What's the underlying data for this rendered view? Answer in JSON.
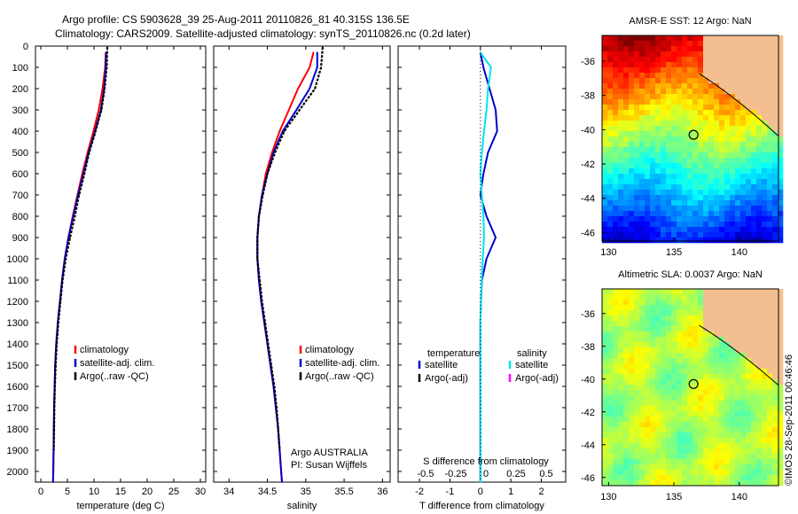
{
  "header": {
    "line1": "Argo profile: CS 5903628_39 25-Aug-2011 20110826_81 40.315S 136.5E",
    "line2": "Climatology: CARS2009. Satellite-adjusted climatology: synTS_20110826.nc (0.2d later)"
  },
  "colors": {
    "climatology": "#ff0000",
    "satellite": "#0000cc",
    "argo": "#000000",
    "sal_satellite": "#00e5ee",
    "sal_argo": "#ff00ff",
    "land": "#f4bf90"
  },
  "chart_data": [
    {
      "type": "line",
      "xlabel": "temperature (deg C)",
      "ylabel": "",
      "xlim": [
        -1,
        31
      ],
      "ylim": [
        2050,
        0
      ],
      "xticks": [
        0,
        5,
        10,
        15,
        20,
        25,
        30
      ],
      "yticks": [
        0,
        100,
        200,
        300,
        400,
        500,
        600,
        700,
        800,
        900,
        1000,
        1100,
        1200,
        1300,
        1400,
        1500,
        1600,
        1700,
        1800,
        1900,
        2000
      ],
      "legend": [
        "climatology",
        "satellite-adj. clim.",
        "Argo(..raw -QC)"
      ],
      "series": [
        {
          "name": "climatology",
          "color": "#ff0000",
          "x": [
            12.2,
            12.1,
            11.6,
            10.9,
            9.9,
            8.8,
            7.8,
            6.9,
            6.0,
            5.2,
            4.5,
            4.0,
            3.6,
            3.2,
            2.9,
            2.7,
            2.6,
            2.5,
            2.45,
            2.4,
            2.35,
            2.3
          ],
          "y": [
            30,
            100,
            200,
            300,
            400,
            500,
            600,
            700,
            800,
            900,
            1000,
            1100,
            1200,
            1300,
            1400,
            1500,
            1600,
            1700,
            1800,
            1900,
            2000,
            2050
          ]
        },
        {
          "name": "satellite-adj. clim.",
          "color": "#0000cc",
          "x": [
            12.3,
            12.2,
            11.9,
            11.3,
            10.2,
            9.0,
            8.0,
            7.0,
            6.1,
            5.2,
            4.5,
            4.0,
            3.6,
            3.2,
            2.9,
            2.7,
            2.6,
            2.5,
            2.45,
            2.4,
            2.35,
            2.3
          ],
          "y": [
            30,
            100,
            200,
            300,
            400,
            500,
            600,
            700,
            800,
            900,
            1000,
            1100,
            1200,
            1300,
            1400,
            1500,
            1600,
            1700,
            1800,
            1900,
            2000,
            2050
          ]
        },
        {
          "name": "Argo(..raw -QC)",
          "color": "#000000",
          "x": [
            12.5,
            12.4,
            12.0,
            11.4,
            10.3,
            9.1,
            8.2,
            7.2,
            6.4,
            5.5,
            4.7,
            4.1,
            3.7,
            3.3,
            3.0,
            2.8,
            2.65,
            2.55,
            2.5,
            2.45
          ],
          "y": [
            5,
            100,
            200,
            300,
            400,
            500,
            600,
            700,
            800,
            900,
            1000,
            1100,
            1200,
            1300,
            1400,
            1500,
            1600,
            1700,
            1800,
            1900
          ]
        }
      ]
    },
    {
      "type": "line",
      "xlabel": "salinity",
      "xlim": [
        33.8,
        36.1
      ],
      "ylim": [
        2050,
        0
      ],
      "xticks": [
        34,
        34.5,
        35,
        35.5,
        36
      ],
      "legend": [
        "climatology",
        "satellite-adj. clim.",
        "Argo(..raw -QC)"
      ],
      "series": [
        {
          "name": "climatology",
          "color": "#ff0000",
          "x": [
            35.1,
            35.05,
            34.9,
            34.78,
            34.66,
            34.56,
            34.48,
            34.43,
            34.39,
            34.37,
            34.37,
            34.39,
            34.42,
            34.46,
            34.5,
            34.54,
            34.58,
            34.61,
            34.64,
            34.66,
            34.68,
            34.69
          ],
          "y": [
            30,
            100,
            200,
            300,
            400,
            500,
            600,
            700,
            800,
            900,
            1000,
            1100,
            1200,
            1300,
            1400,
            1500,
            1600,
            1700,
            1800,
            1900,
            2000,
            2050
          ]
        },
        {
          "name": "satellite-adj. clim.",
          "color": "#0000cc",
          "x": [
            35.15,
            35.15,
            35.05,
            34.88,
            34.7,
            34.58,
            34.5,
            34.43,
            34.39,
            34.37,
            34.37,
            34.39,
            34.42,
            34.46,
            34.5,
            34.54,
            34.58,
            34.61,
            34.64,
            34.66,
            34.68,
            34.69
          ],
          "y": [
            30,
            100,
            200,
            300,
            400,
            500,
            600,
            700,
            800,
            900,
            1000,
            1100,
            1200,
            1300,
            1400,
            1500,
            1600,
            1700,
            1800,
            1900,
            2000,
            2050
          ]
        },
        {
          "name": "Argo(..raw -QC)",
          "color": "#000000",
          "x": [
            35.22,
            35.2,
            35.12,
            34.92,
            34.72,
            34.6,
            34.5,
            34.44,
            34.39,
            34.37,
            34.37,
            34.4,
            34.43,
            34.47,
            34.51,
            34.55,
            34.59,
            34.62,
            34.64,
            34.66
          ],
          "y": [
            5,
            100,
            200,
            300,
            400,
            500,
            600,
            700,
            800,
            900,
            1000,
            1100,
            1200,
            1300,
            1400,
            1500,
            1600,
            1700,
            1800,
            1900
          ]
        }
      ],
      "annotation": [
        "Argo AUSTRALIA",
        "PI: Susan Wijffels"
      ]
    },
    {
      "type": "line",
      "xlabel": "T difference from climatology",
      "top_xlabel": "S difference from climatology",
      "xlim": [
        -2.7,
        2.8
      ],
      "ylim": [
        2050,
        0
      ],
      "xticks": [
        -2,
        -1,
        0,
        1,
        2
      ],
      "top_xticks": [
        "-0.5",
        "-0.25",
        "0",
        "0.25",
        "0.5"
      ],
      "legend_titles": [
        "temperature",
        "salinity"
      ],
      "legend": [
        "satellite",
        "Argo(-adj)",
        "satellite",
        "Argo(-adj)"
      ],
      "series": [
        {
          "name": "satellite",
          "color": "#0000cc",
          "x": [
            0.0,
            0.1,
            0.3,
            0.5,
            0.55,
            0.25,
            0.1,
            0.0,
            0.2,
            0.5,
            0.2,
            0.05,
            0.02,
            0.0,
            0.0,
            0.0,
            0.0,
            0.0,
            0.0,
            0.0,
            0.0
          ],
          "y": [
            30,
            100,
            200,
            300,
            400,
            500,
            600,
            700,
            800,
            900,
            1000,
            1100,
            1200,
            1300,
            1400,
            1500,
            1600,
            1700,
            1800,
            1900,
            2050
          ]
        },
        {
          "name": "satellite",
          "color": "#00e5ee",
          "x": [
            0.0,
            0.35,
            0.25,
            0.2,
            0.12,
            0.05,
            0.0,
            0.05,
            0.1,
            0.12,
            0.08,
            0.04,
            0.02,
            0.0,
            0.0,
            0.0,
            0.0,
            0.0,
            0.0,
            0.0,
            0.0
          ],
          "y": [
            30,
            100,
            200,
            300,
            400,
            500,
            600,
            700,
            800,
            900,
            1000,
            1100,
            1200,
            1300,
            1400,
            1500,
            1600,
            1700,
            1800,
            1900,
            2050
          ]
        }
      ]
    },
    {
      "type": "heatmap",
      "title": "AMSR-E SST: 12 Argo: NaN",
      "xticks": [
        130,
        135,
        140
      ],
      "yticks": [
        -36,
        -38,
        -40,
        -42,
        -44,
        -46
      ],
      "xlim": [
        129.5,
        143
      ],
      "ylim": [
        -46.5,
        -34.5
      ],
      "marker": {
        "lon": 136.5,
        "lat": -40.3
      }
    },
    {
      "type": "heatmap",
      "title": "Altimetric SLA: 0.0037 Argo: NaN",
      "xticks": [
        130,
        135,
        140
      ],
      "yticks": [
        -36,
        -38,
        -40,
        -42,
        -44,
        -46
      ],
      "xlim": [
        129.5,
        143
      ],
      "ylim": [
        -46.5,
        -34.5
      ],
      "marker": {
        "lon": 136.5,
        "lat": -40.3
      }
    }
  ],
  "side_text": "©IMOS 28-Sep-2011 00:46:46"
}
